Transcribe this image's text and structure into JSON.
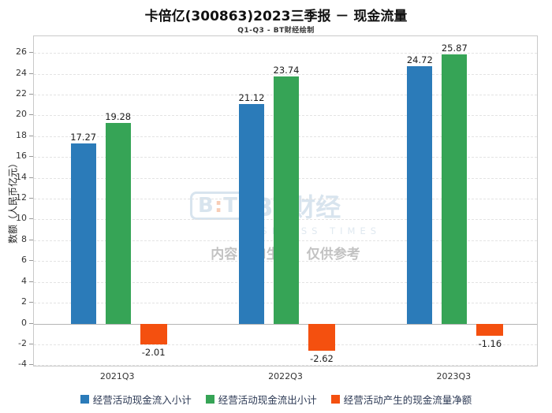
{
  "title": "卡倍亿(300863)2023三季报 － 现金流量",
  "subtitle": "Q1-Q3 - BT财经绘制",
  "watermark": {
    "brand": "BT财经",
    "brand_sub": "BUSINESS TIMES",
    "disclaimer": "内容由AI生成，仅供参考"
  },
  "chart_data": {
    "type": "bar",
    "title": "卡倍亿(300863)2023三季报 － 现金流量",
    "subtitle": "Q1-Q3 - BT财经绘制",
    "categories": [
      "2021Q3",
      "2022Q3",
      "2023Q3"
    ],
    "series": [
      {
        "name": "经营活动现金流入小计",
        "color": "#2b7bb9",
        "values": [
          17.27,
          21.12,
          24.72
        ]
      },
      {
        "name": "经营活动现金流出小计",
        "color": "#36a456",
        "values": [
          19.28,
          23.74,
          25.87
        ]
      },
      {
        "name": "经营活动产生的现金流量净额",
        "color": "#f4500f",
        "values": [
          -2.01,
          -2.62,
          -1.16
        ]
      }
    ],
    "ylabel": "数额（人民币亿元）",
    "ylim": [
      -4.2,
      27.6
    ],
    "yticks": [
      -4,
      -2,
      0,
      2,
      4,
      6,
      8,
      10,
      12,
      14,
      16,
      18,
      20,
      22,
      24,
      26
    ],
    "grid": true,
    "legend_position": "bottom"
  }
}
